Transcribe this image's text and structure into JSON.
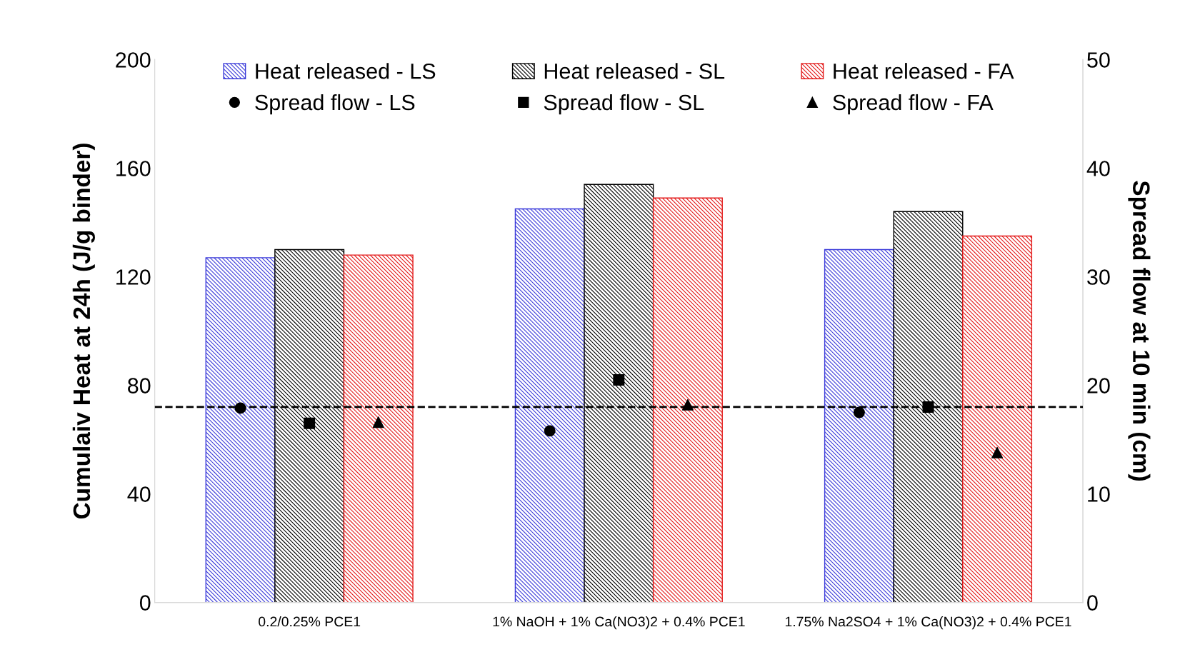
{
  "chart_data": {
    "type": "bar",
    "ylabel": "Cumulaiv Heat at 24h (J/g binder)",
    "y2label": "Spread flow at 10 min (cm)",
    "categories": [
      "0.2/0.25% PCE1",
      "1% NaOH + 1% Ca(NO3)2 + 0.4% PCE1",
      "1.75% Na2SO4 + 1% Ca(NO3)2 + 0.4% PCE1"
    ],
    "series": [
      {
        "name": "Heat released - LS",
        "color": "#3b3bd9",
        "values": [
          127,
          145,
          130
        ]
      },
      {
        "name": "Heat released - SL",
        "color": "#000000",
        "values": [
          130,
          154,
          144
        ]
      },
      {
        "name": "Heat released - FA",
        "color": "#e31a1a",
        "values": [
          128,
          149,
          135
        ]
      },
      {
        "name": "Spread flow - LS",
        "type": "scatter",
        "axis": "y2",
        "marker": "circle",
        "color": "#000000",
        "values": [
          17.9,
          15.8,
          17.5
        ]
      },
      {
        "name": "Spread flow - SL",
        "type": "scatter",
        "axis": "y2",
        "marker": "square",
        "color": "#000000",
        "values": [
          16.5,
          20.5,
          18.0
        ]
      },
      {
        "name": "Spread flow - FA",
        "type": "scatter",
        "axis": "y2",
        "marker": "triangle",
        "color": "#000000",
        "values": [
          16.6,
          18.2,
          13.8
        ]
      }
    ],
    "ylim": [
      0,
      200
    ],
    "yticks": [
      0,
      40,
      80,
      120,
      160,
      200
    ],
    "y2lim": [
      0,
      50
    ],
    "y2ticks": [
      0,
      10,
      20,
      30,
      40,
      50
    ],
    "ref_lines": [
      {
        "axis": "y2",
        "value": 18,
        "color": "#000000",
        "line_style": "dashed"
      }
    ],
    "grid": false,
    "legend": "top"
  }
}
